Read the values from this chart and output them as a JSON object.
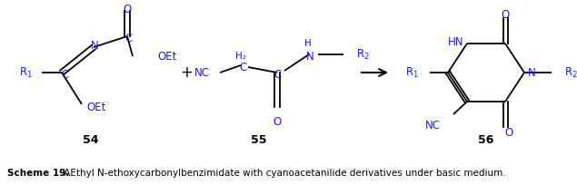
{
  "figsize": [
    6.35,
    2.04
  ],
  "dpi": 100,
  "bg_color": "#ffffff",
  "caption_bold": "Scheme 19.",
  "caption_normal": " AEthyl N-ethoxycarbonylbenzimidate with cyanoacetanilide derivatives under basic medium.",
  "caption_fontsize": 7.5,
  "label_54": "54",
  "label_55": "55",
  "label_56": "56"
}
